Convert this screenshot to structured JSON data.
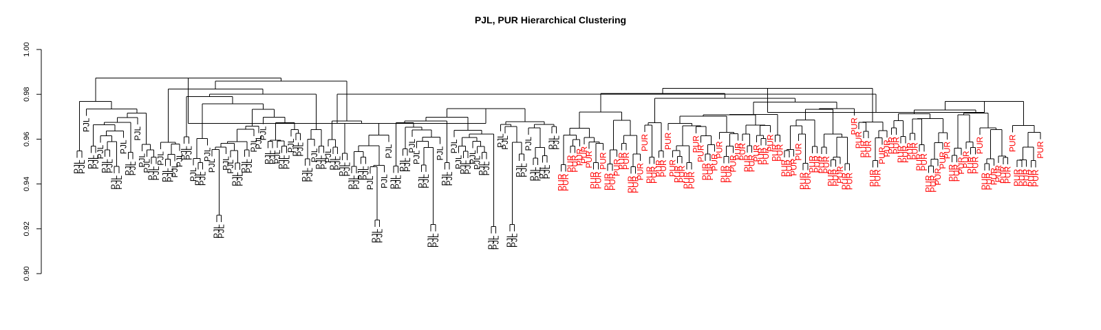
{
  "title": "PJL, PUR Hierarchical Clustering",
  "colors": {
    "PJL": "#000000",
    "PUR": "#ff0000",
    "branch": "#000000"
  },
  "y_axis": {
    "min": 0.9,
    "max": 1.0,
    "ticks": [
      "0.90",
      "0.92",
      "0.94",
      "0.96",
      "0.98",
      "1.00"
    ]
  },
  "chart_data": {
    "type": "dendrogram",
    "title": "PJL, PUR Hierarchical Clustering",
    "ylim": [
      0.9,
      1.0
    ],
    "root_height": 0.98,
    "groups": [
      {
        "label": "PJL",
        "leaf_count": 104,
        "merge_height": 0.967
      },
      {
        "label": "PUR",
        "leaf_count": 104,
        "merge_height": 0.972
      }
    ],
    "notable_low_merges": [
      {
        "labels": [
          "PJL",
          "PJL"
        ],
        "height": 0.921
      },
      {
        "labels": [
          "PJL",
          "PJL"
        ],
        "height": 0.922
      },
      {
        "labels": [
          "PJL",
          "PJL"
        ],
        "height": 0.926
      },
      {
        "labels": [
          "PJL",
          "PJL"
        ],
        "height": 0.922
      },
      {
        "labels": [
          "PJL",
          "PJL"
        ],
        "height": 0.924
      },
      {
        "labels": [
          "PUR",
          "PUR"
        ],
        "height": 0.948
      }
    ]
  }
}
